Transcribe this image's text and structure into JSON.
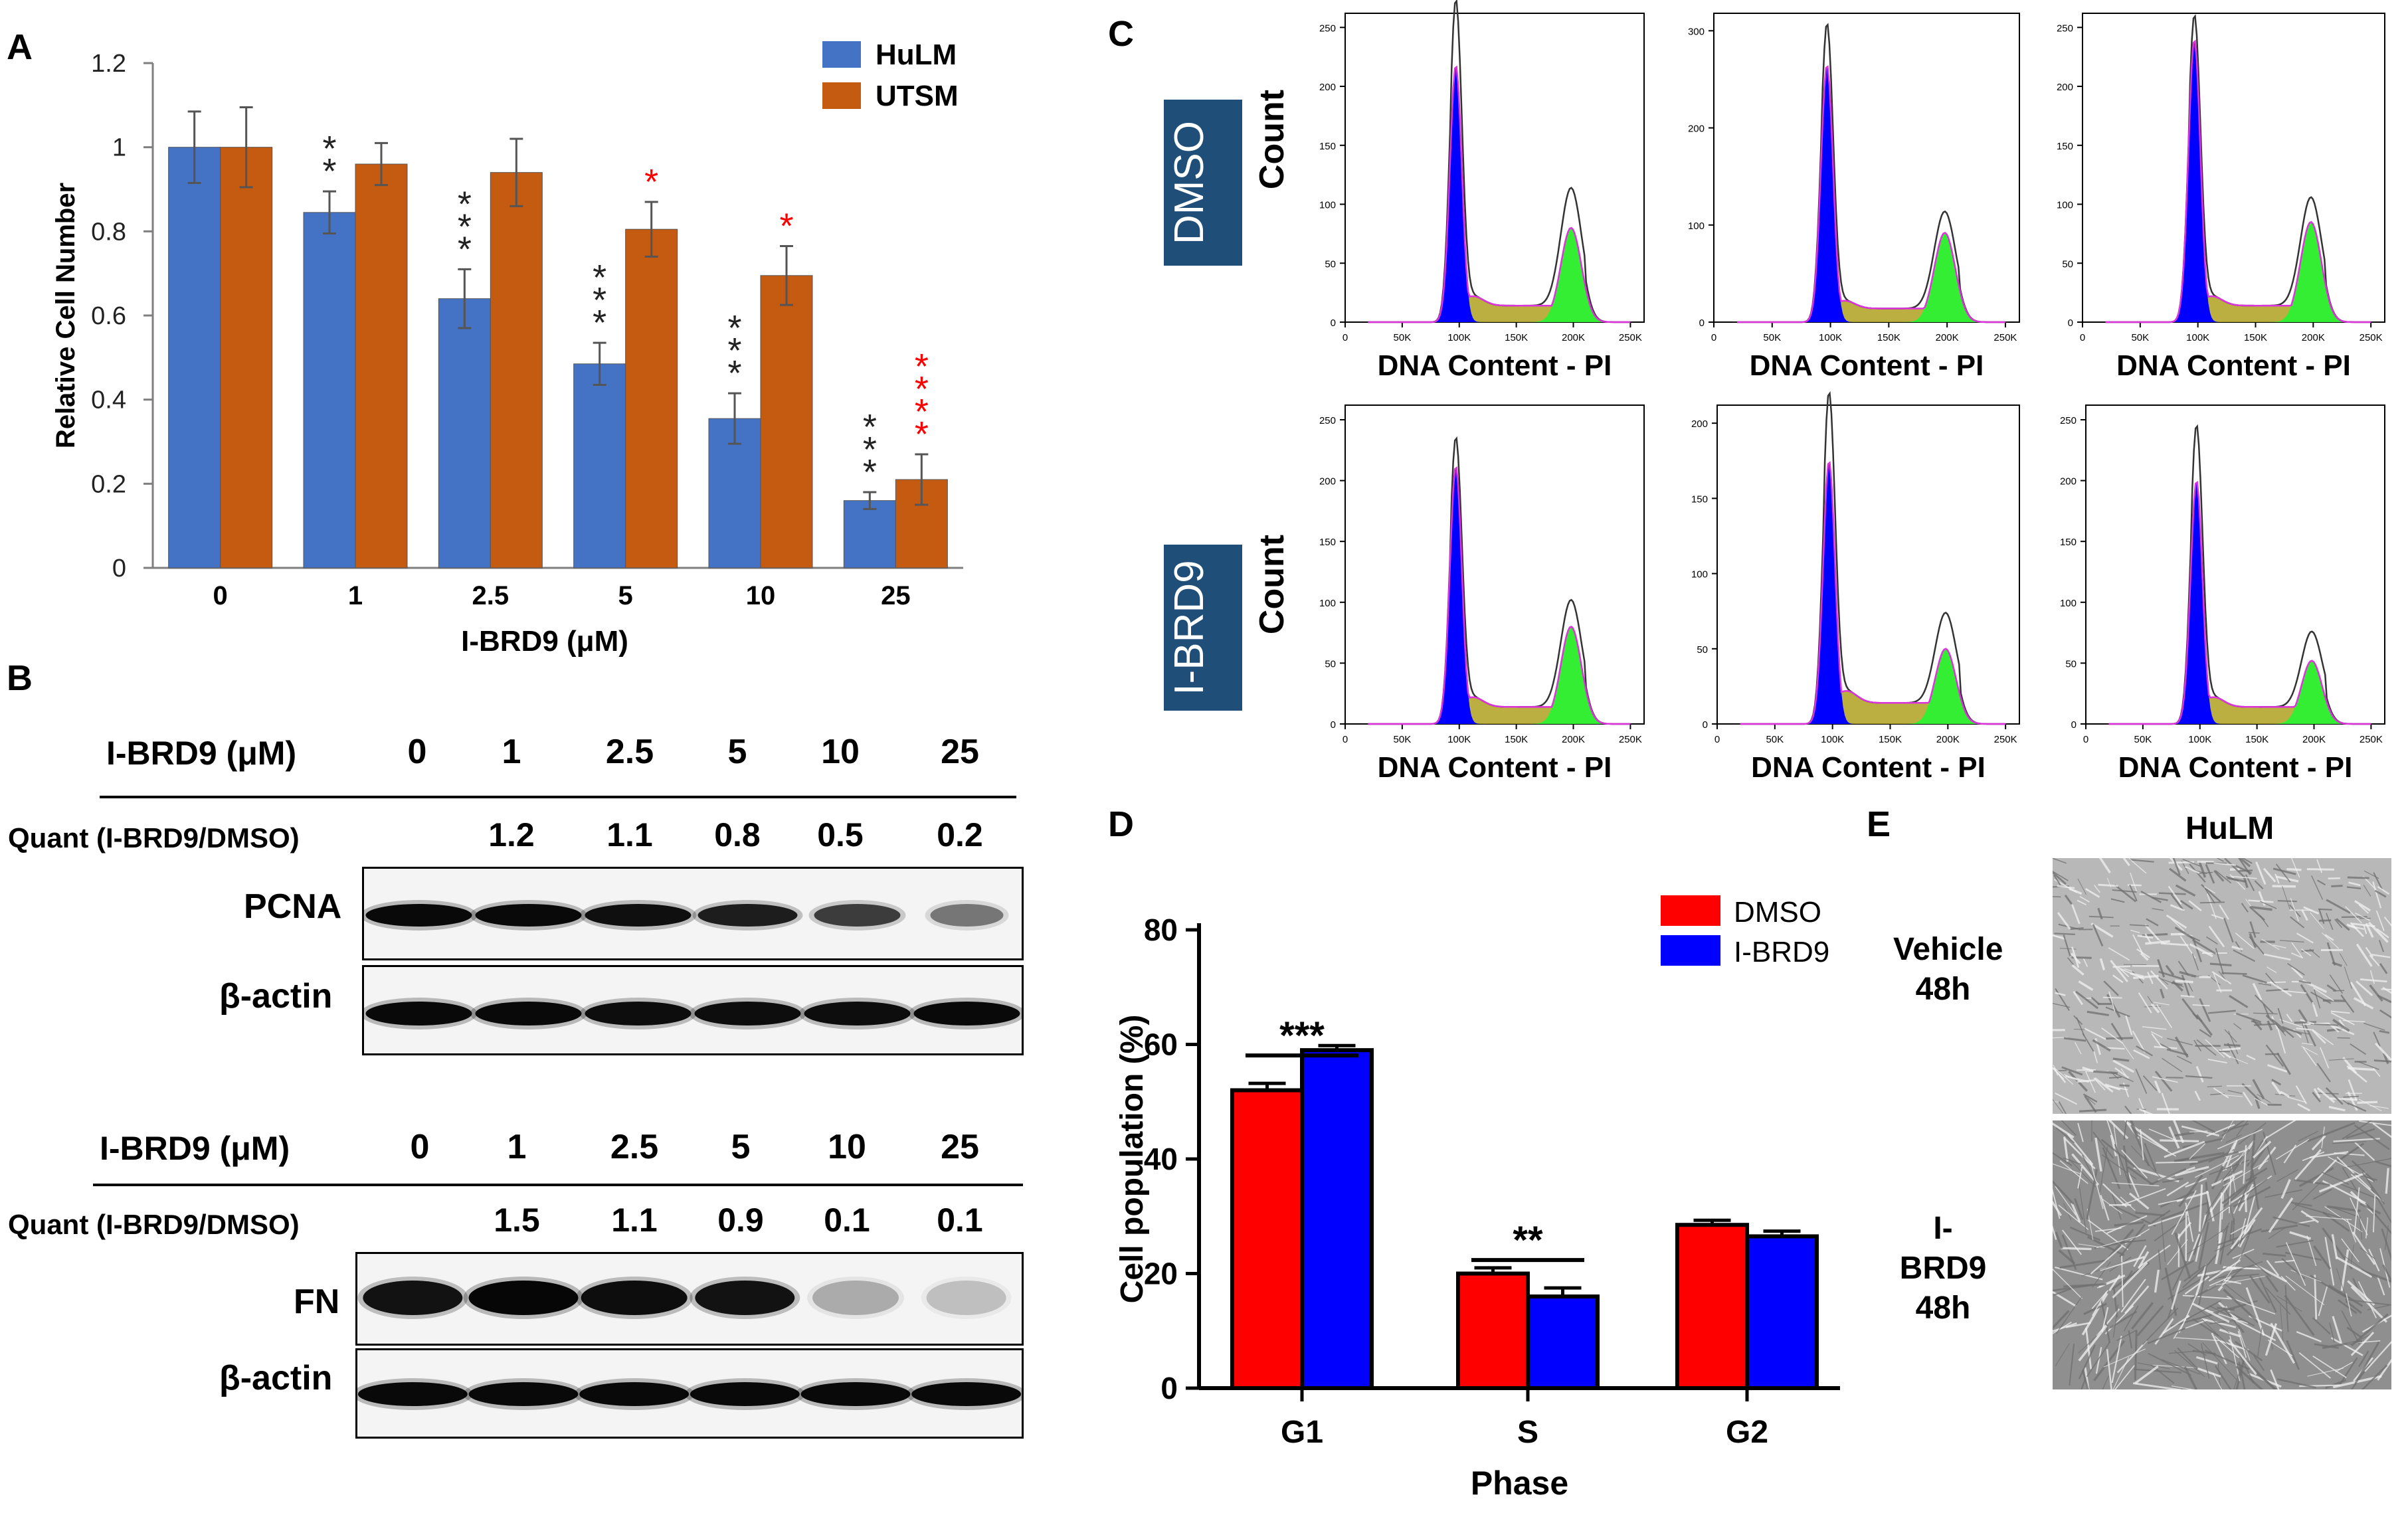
{
  "panels": {
    "A": "A",
    "B": "B",
    "C": "C",
    "D": "D",
    "E": "E"
  },
  "colors": {
    "hulm": "#4472C4",
    "utsm": "#C55A11",
    "dmso": "#FF0000",
    "ibrd9": "#0000FF",
    "g1": "#0000FF",
    "s": "#B5A62E",
    "g2": "#33EE33",
    "label_box": "#1F4E79",
    "red_star": "#FF0000"
  },
  "chart_data": [
    {
      "type": "bar",
      "panel": "A",
      "categories": [
        "0",
        "1",
        "2.5",
        "5",
        "10",
        "25"
      ],
      "series": [
        {
          "name": "HuLM",
          "values": [
            1.0,
            0.845,
            0.64,
            0.485,
            0.355,
            0.16
          ],
          "errors": [
            0.085,
            0.05,
            0.07,
            0.05,
            0.06,
            0.02
          ]
        },
        {
          "name": "UTSM",
          "values": [
            1.0,
            0.96,
            0.94,
            0.805,
            0.695,
            0.21
          ],
          "errors": [
            0.095,
            0.05,
            0.08,
            0.065,
            0.07,
            0.06
          ]
        }
      ],
      "significance": [
        {
          "series": "HuLM",
          "marks": [
            "",
            "**",
            "***",
            "***",
            "***",
            "***"
          ]
        },
        {
          "series": "UTSM",
          "marks": [
            "",
            "",
            "",
            "*",
            "*",
            "****"
          ]
        }
      ],
      "xlabel": "I-BRD9 (μM)",
      "ylabel": "Relative Cell Number",
      "ylim": [
        0,
        1.2
      ],
      "yticks": [
        "0",
        "0.2",
        "0.4",
        "0.6",
        "0.8",
        "1",
        "1.2"
      ],
      "legend": "top-right"
    },
    {
      "type": "bar",
      "panel": "D",
      "categories": [
        "G1",
        "S",
        "G2"
      ],
      "series": [
        {
          "name": "DMSO",
          "values": [
            52,
            20,
            28.5
          ],
          "errors": [
            1.2,
            1.0,
            0.8
          ]
        },
        {
          "name": "I-BRD9",
          "values": [
            59,
            16,
            26.5
          ],
          "errors": [
            0.8,
            1.5,
            0.9
          ]
        }
      ],
      "significance": [
        "***",
        "**",
        ""
      ],
      "xlabel": "Phase",
      "ylabel": "Cell population (%)",
      "ylim": [
        0,
        80
      ],
      "yticks": [
        "0",
        "20",
        "40",
        "60",
        "80"
      ],
      "legend": "top-right"
    },
    {
      "type": "area",
      "panel": "C",
      "xlabel": "DNA Content - PI",
      "ylabel": "Count",
      "rows": [
        "DMSO",
        "I-BRD9"
      ],
      "xticks": [
        "0",
        "50K",
        "100K",
        "150K",
        "200K",
        "250K"
      ],
      "histograms": [
        {
          "yticks": [
            "0",
            "50",
            "100",
            "150",
            "200",
            "250"
          ],
          "ymax": 262,
          "g1_peak": 258,
          "g1_fill": 218,
          "g2_peak": 100,
          "g2_fill": 80
        },
        {
          "yticks": [
            "0",
            "100",
            "200",
            "300"
          ],
          "ymax": 318,
          "g1_peak": 292,
          "g1_fill": 265,
          "g2_peak": 100,
          "g2_fill": 92
        },
        {
          "yticks": [
            "0",
            "50",
            "100",
            "150",
            "200",
            "250"
          ],
          "ymax": 262,
          "g1_peak": 245,
          "g1_fill": 240,
          "g2_peak": 92,
          "g2_fill": 85
        },
        {
          "yticks": [
            "0",
            "50",
            "100",
            "150",
            "200",
            "250"
          ],
          "ymax": 262,
          "g1_peak": 220,
          "g1_fill": 212,
          "g2_peak": 88,
          "g2_fill": 80
        },
        {
          "yticks": [
            "0",
            "50",
            "100",
            "150",
            "200"
          ],
          "ymax": 212,
          "g1_peak": 205,
          "g1_fill": 175,
          "g2_peak": 60,
          "g2_fill": 50
        },
        {
          "yticks": [
            "0",
            "50",
            "100",
            "150",
            "200",
            "250"
          ],
          "ymax": 262,
          "g1_peak": 230,
          "g1_fill": 200,
          "g2_peak": 62,
          "g2_fill": 52
        }
      ]
    }
  ],
  "westerns": {
    "top": {
      "header": "I-BRD9 (μM)",
      "doses": [
        "0",
        "1",
        "2.5",
        "5",
        "10",
        "25"
      ],
      "quant_label": "Quant (I-BRD9/DMSO)",
      "quant": [
        "1.2",
        "1.1",
        "0.8",
        "0.5",
        "0.2"
      ],
      "bands": [
        {
          "label": "PCNA"
        },
        {
          "label": "β-actin"
        }
      ]
    },
    "bottom": {
      "header": "I-BRD9 (μM)",
      "doses": [
        "0",
        "1",
        "2.5",
        "5",
        "10",
        "25"
      ],
      "quant_label": "Quant (I-BRD9/DMSO)",
      "quant": [
        "1.5",
        "1.1",
        "0.9",
        "0.1",
        "0.1"
      ],
      "bands": [
        {
          "label": "FN"
        },
        {
          "label": "β-actin"
        }
      ]
    }
  },
  "panel_e": {
    "title": "HuLM",
    "rows": [
      {
        "line1": "Vehicle",
        "line2": "48h"
      },
      {
        "line1": "I-BRD9",
        "line2": "48h"
      }
    ]
  }
}
